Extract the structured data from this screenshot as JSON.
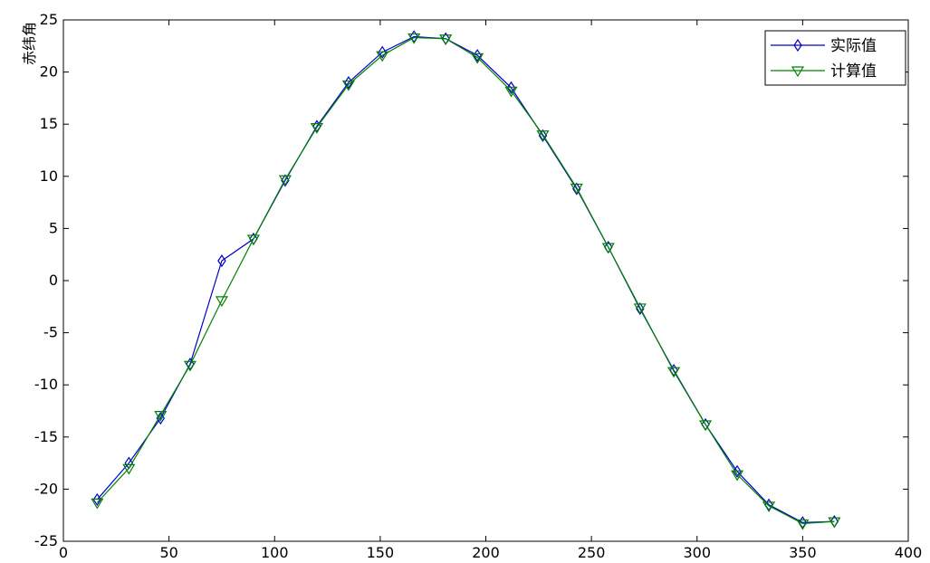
{
  "chart_data": {
    "type": "line",
    "title": "",
    "xlabel": "",
    "ylabel": "赤纬角",
    "xlim": [
      0,
      400
    ],
    "ylim": [
      -25,
      25
    ],
    "xticks": [
      0,
      50,
      100,
      150,
      200,
      250,
      300,
      350,
      400
    ],
    "yticks": [
      -25,
      -20,
      -15,
      -10,
      -5,
      0,
      5,
      10,
      15,
      20,
      25
    ],
    "grid": false,
    "legend_position": "top-right",
    "series": [
      {
        "name": "实际值",
        "color": "#0000cc",
        "marker": "diamond",
        "x": [
          16,
          31,
          46,
          60,
          75,
          90,
          105,
          120,
          135,
          151,
          166,
          181,
          196,
          212,
          227,
          243,
          258,
          273,
          289,
          304,
          319,
          334,
          350,
          365
        ],
        "y": [
          -21.0,
          -17.5,
          -13.2,
          -8.0,
          1.9,
          4.0,
          9.6,
          14.8,
          19.0,
          21.9,
          23.4,
          23.2,
          21.6,
          18.5,
          13.9,
          8.8,
          3.2,
          -2.7,
          -8.6,
          -13.8,
          -18.3,
          -21.5,
          -23.2,
          -23.1
        ]
      },
      {
        "name": "计算值",
        "color": "#008000",
        "marker": "triangle-down",
        "x": [
          16,
          31,
          46,
          60,
          75,
          90,
          105,
          120,
          135,
          151,
          166,
          181,
          196,
          212,
          227,
          243,
          258,
          273,
          289,
          304,
          319,
          334,
          350,
          365
        ],
        "y": [
          -21.3,
          -18.0,
          -12.9,
          -8.1,
          -1.9,
          4.0,
          9.7,
          14.7,
          18.8,
          21.6,
          23.3,
          23.2,
          21.4,
          18.2,
          14.0,
          8.9,
          3.2,
          -2.6,
          -8.7,
          -13.8,
          -18.6,
          -21.6,
          -23.3,
          -23.1
        ]
      }
    ]
  }
}
